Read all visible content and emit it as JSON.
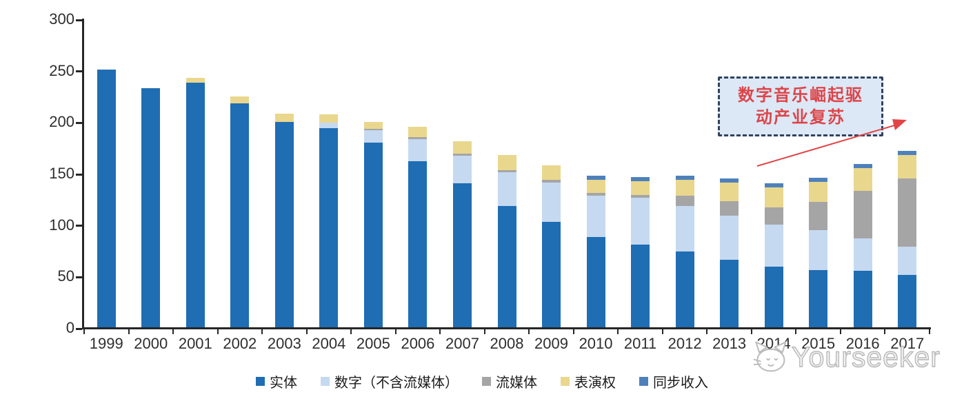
{
  "chart_data": {
    "type": "bar",
    "stacked": true,
    "categories": [
      "1999",
      "2000",
      "2001",
      "2002",
      "2003",
      "2004",
      "2005",
      "2006",
      "2007",
      "2008",
      "2009",
      "2010",
      "2011",
      "2012",
      "2013",
      "2014",
      "2015",
      "2016",
      "2017"
    ],
    "series": [
      {
        "name": "实体",
        "color": "#1F6DB3",
        "values": [
          252,
          234,
          239,
          219,
          201,
          195,
          181,
          163,
          141,
          119,
          104,
          89,
          82,
          75,
          67,
          60,
          57,
          56,
          52
        ]
      },
      {
        "name": "数字（不含流媒体）",
        "color": "#C5D9F1",
        "values": [
          0,
          0,
          0,
          0,
          0,
          5,
          12,
          21,
          27,
          33,
          38,
          40,
          45,
          44,
          43,
          41,
          39,
          32,
          28
        ]
      },
      {
        "name": "流媒体",
        "color": "#A5A5A5",
        "values": [
          0,
          0,
          0,
          0,
          0,
          0,
          1,
          2,
          2,
          2,
          3,
          3,
          3,
          10,
          14,
          17,
          27,
          46,
          66
        ]
      },
      {
        "name": "表演权",
        "color": "#E9D78E",
        "values": [
          0,
          0,
          5,
          7,
          8,
          8,
          7,
          10,
          12,
          15,
          14,
          13,
          13,
          16,
          18,
          19,
          20,
          22,
          23
        ]
      },
      {
        "name": "同步收入",
        "color": "#4E81BB",
        "values": [
          0,
          0,
          0,
          0,
          0,
          0,
          0,
          0,
          0,
          0,
          0,
          4,
          4,
          4,
          4,
          4,
          4,
          4,
          4
        ]
      }
    ],
    "ylim": [
      0,
      300
    ],
    "yticks": [
      0,
      50,
      100,
      150,
      200,
      250,
      300
    ],
    "grid": false,
    "legend_position": "bottom",
    "title": ""
  },
  "annotation": {
    "lines": [
      "数字音乐崛起驱",
      "动产业复苏"
    ],
    "full_text": "数字音乐崛起驱动产业复苏",
    "text_color": "#DC4549",
    "box_fill": "#DCE8F6",
    "box_border_color": "#33415C",
    "arrow_color": "#E24445"
  },
  "watermark": {
    "text": "Yourseeker",
    "icon": "cat-logo-icon"
  },
  "colors": {
    "axis": "#262626",
    "tick_label": "#2E2E2E",
    "background": "#FFFFFF"
  }
}
